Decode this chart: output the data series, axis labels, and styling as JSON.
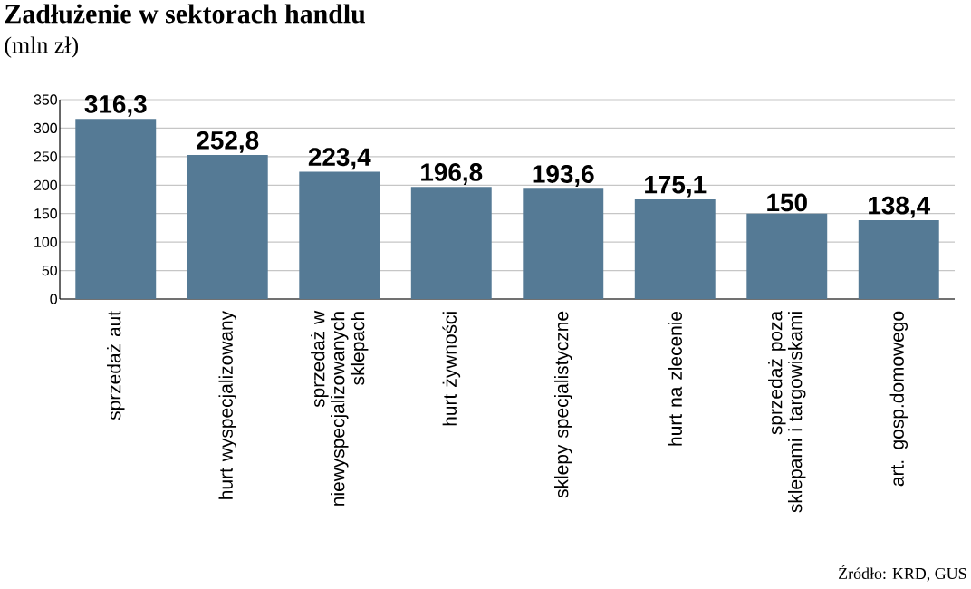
{
  "chart_data": {
    "type": "bar",
    "title": "Zadłużenie w sektorach handlu",
    "subtitle": "(mln zł)",
    "categories": [
      "sprzedaż aut",
      "hurt wyspecjalizowany",
      "sprzedaż w niewyspecjalizowanych sklepach",
      "hurt żywności",
      "sklepy specjalistyczne",
      "hurt na zlecenie",
      "sprzedaż poza sklepami i targowiskami",
      "art. gosp.domowego"
    ],
    "values": [
      316.3,
      252.8,
      223.4,
      196.8,
      193.6,
      175.1,
      150,
      138.4
    ],
    "value_labels": [
      "316,3",
      "252,8",
      "223,4",
      "196,8",
      "193,6",
      "175,1",
      "150",
      "138,4"
    ],
    "color": "#557a95",
    "ylim": [
      0,
      350
    ],
    "yticks": [
      0,
      50,
      100,
      150,
      200,
      250,
      300,
      350
    ],
    "grid": "y",
    "annotations": [
      "Źródło: KRD, GUS"
    ]
  }
}
